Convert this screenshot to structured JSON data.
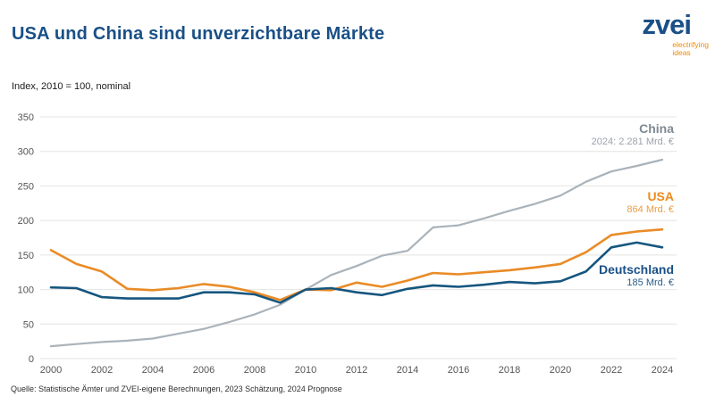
{
  "header": {
    "title": "USA und China sind unverzichtbare Märkte",
    "subtitle": "Index, 2010 = 100, nominal"
  },
  "logo": {
    "name": "zvei",
    "tagline_line1": "electrifying",
    "tagline_line2": "ideas",
    "blue": "#1a5087",
    "orange": "#f08a00"
  },
  "annotations": {
    "china": {
      "label": "China",
      "value": "2024: 2.281 Mrd. €"
    },
    "usa": {
      "label": "USA",
      "value": "864 Mrd. €"
    },
    "deutschland": {
      "label": "Deutschland",
      "value": "185 Mrd. €"
    }
  },
  "source": "Quelle: Statistische Ämter und ZVEI-eigene Berechnungen, 2023 Schätzung, 2024 Prognose",
  "colors": {
    "grid": "#e4e4e2",
    "tick_text": "#555555",
    "title_blue": "#1a5087"
  },
  "chart_data": {
    "type": "line",
    "title": "USA und China sind unverzichtbare Märkte",
    "subtitle": "Index, 2010 = 100, nominal",
    "xlabel": "",
    "ylabel": "Index, 2010 = 100, nominal",
    "x": [
      2000,
      2001,
      2002,
      2003,
      2004,
      2005,
      2006,
      2007,
      2008,
      2009,
      2010,
      2011,
      2012,
      2013,
      2014,
      2015,
      2016,
      2017,
      2018,
      2019,
      2020,
      2021,
      2022,
      2023,
      2024
    ],
    "x_tick_labels": [
      "2000",
      "2002",
      "2004",
      "2006",
      "2008",
      "2010",
      "2012",
      "2014",
      "2016",
      "2018",
      "2020",
      "2022",
      "2024"
    ],
    "y_ticks": [
      0,
      50,
      100,
      150,
      200,
      250,
      300,
      350
    ],
    "ylim": [
      0,
      350
    ],
    "grid": "horizontal",
    "legend_position": "right-annotations",
    "series": [
      {
        "name": "China",
        "color": "#aab3ba",
        "values": [
          18,
          21,
          24,
          26,
          29,
          36,
          43,
          53,
          64,
          78,
          100,
          121,
          134,
          149,
          156,
          190,
          193,
          203,
          214,
          224,
          236,
          256,
          271,
          279,
          288
        ]
      },
      {
        "name": "USA",
        "color": "#e98b26",
        "values": [
          157,
          137,
          126,
          101,
          99,
          102,
          108,
          104,
          96,
          85,
          100,
          99,
          110,
          104,
          113,
          124,
          122,
          125,
          128,
          132,
          137,
          154,
          179,
          184,
          187
        ]
      },
      {
        "name": "Deutschland",
        "color": "#16567f",
        "values": [
          103,
          102,
          89,
          87,
          87,
          87,
          96,
          96,
          93,
          81,
          100,
          102,
          96,
          92,
          101,
          106,
          104,
          107,
          111,
          109,
          112,
          126,
          161,
          168,
          161
        ]
      }
    ]
  }
}
